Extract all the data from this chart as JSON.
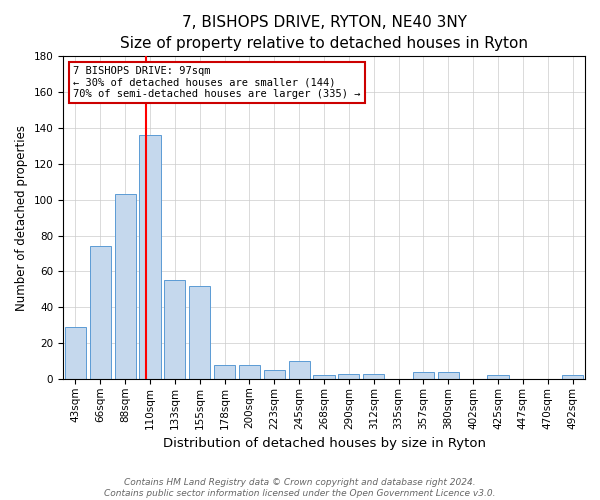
{
  "title": "7, BISHOPS DRIVE, RYTON, NE40 3NY",
  "subtitle": "Size of property relative to detached houses in Ryton",
  "xlabel": "Distribution of detached houses by size in Ryton",
  "ylabel": "Number of detached properties",
  "categories": [
    "43sqm",
    "66sqm",
    "88sqm",
    "110sqm",
    "133sqm",
    "155sqm",
    "178sqm",
    "200sqm",
    "223sqm",
    "245sqm",
    "268sqm",
    "290sqm",
    "312sqm",
    "335sqm",
    "357sqm",
    "380sqm",
    "402sqm",
    "425sqm",
    "447sqm",
    "470sqm",
    "492sqm"
  ],
  "values": [
    29,
    74,
    103,
    136,
    55,
    52,
    8,
    8,
    5,
    10,
    2,
    3,
    3,
    0,
    4,
    4,
    0,
    2,
    0,
    0,
    2
  ],
  "bar_color": "#c5d8ed",
  "bar_edge_color": "#5b9bd5",
  "red_line_x": 2.82,
  "annotation_line1": "7 BISHOPS DRIVE: 97sqm",
  "annotation_line2": "← 30% of detached houses are smaller (144)",
  "annotation_line3": "70% of semi-detached houses are larger (335) →",
  "annotation_box_color": "#ffffff",
  "annotation_box_edge_color": "#cc0000",
  "footer_line1": "Contains HM Land Registry data © Crown copyright and database right 2024.",
  "footer_line2": "Contains public sector information licensed under the Open Government Licence v3.0.",
  "ylim": [
    0,
    180
  ],
  "yticks": [
    0,
    20,
    40,
    60,
    80,
    100,
    120,
    140,
    160,
    180
  ],
  "title_fontsize": 11,
  "subtitle_fontsize": 9.5,
  "xlabel_fontsize": 9.5,
  "ylabel_fontsize": 8.5,
  "tick_fontsize": 7.5,
  "annot_fontsize": 7.5,
  "footer_fontsize": 6.5
}
